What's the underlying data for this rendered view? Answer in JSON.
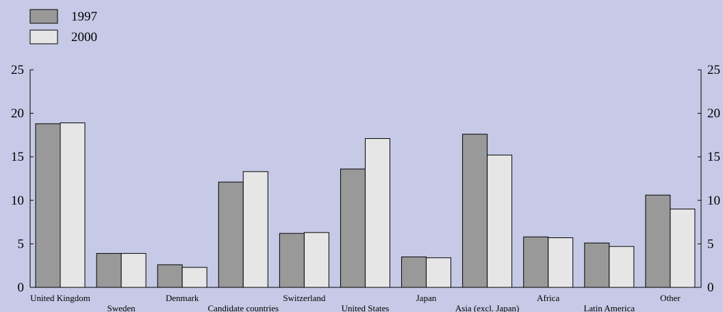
{
  "chart_data": {
    "type": "bar",
    "title": "",
    "xlabel": "",
    "ylabel": "",
    "ylim": [
      0,
      25
    ],
    "yticks": [
      0,
      5,
      10,
      15,
      20,
      25
    ],
    "grid": false,
    "legend_position": "top-left",
    "categories": [
      "United Kingdom",
      "Sweden",
      "Denmark",
      "Candidate countries",
      "Switzerland",
      "United States",
      "Japan",
      "Asia (excl. Japan)",
      "Africa",
      "Latin America",
      "Other"
    ],
    "series": [
      {
        "name": "1997",
        "color": "#999999",
        "values": [
          18.8,
          3.9,
          2.6,
          12.1,
          6.2,
          13.6,
          3.5,
          17.6,
          5.8,
          5.1,
          10.6
        ]
      },
      {
        "name": "2000",
        "color": "#e6e6e6",
        "values": [
          18.9,
          3.9,
          2.3,
          13.3,
          6.3,
          17.1,
          3.4,
          15.2,
          5.7,
          4.7,
          9.0
        ]
      }
    ]
  }
}
